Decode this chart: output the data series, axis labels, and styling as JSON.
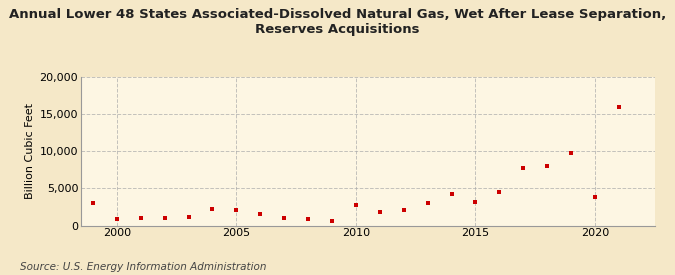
{
  "title_line1": "Annual Lower 48 States Associated-Dissolved Natural Gas, Wet After Lease Separation,",
  "title_line2": "Reserves Acquisitions",
  "ylabel": "Billion Cubic Feet",
  "source": "Source: U.S. Energy Information Administration",
  "background_color": "#f5e8c8",
  "plot_background_color": "#fdf6e3",
  "marker_color": "#cc0000",
  "years": [
    1999,
    2000,
    2001,
    2002,
    2003,
    2004,
    2005,
    2006,
    2007,
    2008,
    2009,
    2010,
    2011,
    2012,
    2013,
    2014,
    2015,
    2016,
    2017,
    2018,
    2019,
    2020,
    2021
  ],
  "values": [
    3000,
    900,
    1000,
    1050,
    1100,
    2200,
    2050,
    1500,
    1000,
    900,
    600,
    2700,
    1800,
    2100,
    3000,
    4300,
    3200,
    4500,
    7700,
    8000,
    9800,
    3900,
    16000
  ],
  "ylim": [
    0,
    20000
  ],
  "yticks": [
    0,
    5000,
    10000,
    15000,
    20000
  ],
  "xlim": [
    1998.5,
    2022.5
  ],
  "xticks": [
    2000,
    2005,
    2010,
    2015,
    2020
  ],
  "grid_color": "#aaaaaa",
  "title_fontsize": 9.5,
  "label_fontsize": 8,
  "tick_fontsize": 8,
  "source_fontsize": 7.5
}
